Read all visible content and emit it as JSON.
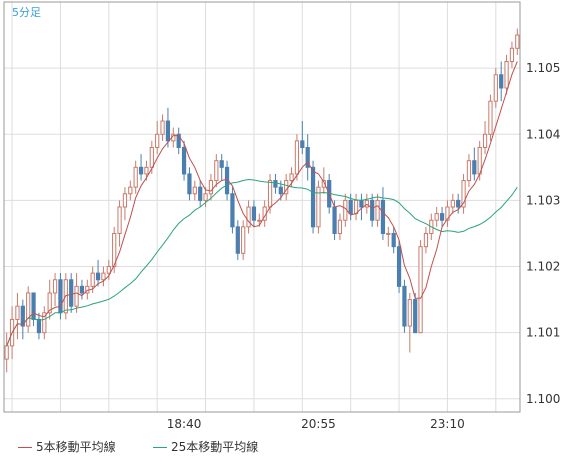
{
  "chart_data": {
    "type": "candlestick",
    "timeframe_label": "5分足",
    "x_tick_labels": [
      "18:40",
      "20:55",
      "23:10"
    ],
    "y_ticks": [
      1.1,
      1.101,
      1.102,
      1.103,
      1.104,
      1.105
    ],
    "y_tick_labels": [
      "1.100",
      "1.101",
      "1.102",
      "1.103",
      "1.104",
      "1.105"
    ],
    "ylim": [
      1.0998,
      1.106
    ],
    "grid": true,
    "legend_position": "bottom-left",
    "colors": {
      "up": "#c97a6a",
      "down": "#4a7fb0",
      "ma5": "#c0504d",
      "ma25": "#2aa47a",
      "grid": "#dddddd",
      "axis": "#999999"
    },
    "candles": [
      [
        1.1006,
        1.101,
        1.1004,
        1.1008
      ],
      [
        1.1008,
        1.1014,
        1.1006,
        1.1012
      ],
      [
        1.1012,
        1.1016,
        1.1009,
        1.1014
      ],
      [
        1.1014,
        1.1015,
        1.1009,
        1.1011
      ],
      [
        1.1011,
        1.1017,
        1.101,
        1.1016
      ],
      [
        1.1016,
        1.1016,
        1.1011,
        1.1012
      ],
      [
        1.1012,
        1.1013,
        1.1009,
        1.101
      ],
      [
        1.101,
        1.1014,
        1.1009,
        1.1013
      ],
      [
        1.1013,
        1.1018,
        1.1012,
        1.1016
      ],
      [
        1.1016,
        1.1019,
        1.1014,
        1.1018
      ],
      [
        1.1018,
        1.1019,
        1.1012,
        1.1013
      ],
      [
        1.1013,
        1.1019,
        1.1012,
        1.1018
      ],
      [
        1.1018,
        1.1019,
        1.1013,
        1.1014
      ],
      [
        1.1014,
        1.1019,
        1.1013,
        1.1017
      ],
      [
        1.1017,
        1.1018,
        1.1015,
        1.1016
      ],
      [
        1.1016,
        1.1018,
        1.1015,
        1.1017
      ],
      [
        1.1017,
        1.102,
        1.1016,
        1.1019
      ],
      [
        1.1019,
        1.1021,
        1.1017,
        1.1018
      ],
      [
        1.1018,
        1.102,
        1.1017,
        1.1019
      ],
      [
        1.1019,
        1.1021,
        1.1018,
        1.102
      ],
      [
        1.102,
        1.1026,
        1.1019,
        1.1025
      ],
      [
        1.1025,
        1.103,
        1.1023,
        1.1029
      ],
      [
        1.1029,
        1.1032,
        1.1027,
        1.1031
      ],
      [
        1.1031,
        1.1033,
        1.103,
        1.1032
      ],
      [
        1.1032,
        1.1036,
        1.1031,
        1.1035
      ],
      [
        1.1035,
        1.1037,
        1.1033,
        1.1034
      ],
      [
        1.1034,
        1.1036,
        1.1033,
        1.1035
      ],
      [
        1.1035,
        1.1039,
        1.1034,
        1.1038
      ],
      [
        1.1038,
        1.1042,
        1.1037,
        1.104
      ],
      [
        1.104,
        1.1043,
        1.1039,
        1.1042
      ],
      [
        1.1042,
        1.1044,
        1.1038,
        1.1039
      ],
      [
        1.1039,
        1.1041,
        1.1038,
        1.104
      ],
      [
        1.104,
        1.1041,
        1.1037,
        1.1038
      ],
      [
        1.1038,
        1.1039,
        1.1033,
        1.1034
      ],
      [
        1.1034,
        1.1035,
        1.103,
        1.1031
      ],
      [
        1.1031,
        1.1033,
        1.103,
        1.1032
      ],
      [
        1.1032,
        1.1033,
        1.1029,
        1.103
      ],
      [
        1.103,
        1.1032,
        1.1029,
        1.1031
      ],
      [
        1.1031,
        1.1034,
        1.103,
        1.1033
      ],
      [
        1.1033,
        1.1037,
        1.1032,
        1.1036
      ],
      [
        1.1036,
        1.1037,
        1.1033,
        1.1035
      ],
      [
        1.1035,
        1.1036,
        1.103,
        1.1031
      ],
      [
        1.1031,
        1.1032,
        1.1025,
        1.1026
      ],
      [
        1.1026,
        1.1027,
        1.1021,
        1.1022
      ],
      [
        1.1022,
        1.1027,
        1.1021,
        1.1026
      ],
      [
        1.1026,
        1.103,
        1.1025,
        1.1029
      ],
      [
        1.1029,
        1.103,
        1.1026,
        1.1027
      ],
      [
        1.1027,
        1.1028,
        1.1026,
        1.1027
      ],
      [
        1.1027,
        1.103,
        1.1026,
        1.1029
      ],
      [
        1.1029,
        1.1034,
        1.1028,
        1.1033
      ],
      [
        1.1033,
        1.1034,
        1.1031,
        1.1032
      ],
      [
        1.1032,
        1.1033,
        1.103,
        1.1031
      ],
      [
        1.1031,
        1.1034,
        1.103,
        1.1033
      ],
      [
        1.1033,
        1.1035,
        1.1032,
        1.1034
      ],
      [
        1.1034,
        1.104,
        1.1033,
        1.1039
      ],
      [
        1.1039,
        1.1042,
        1.1037,
        1.1038
      ],
      [
        1.1038,
        1.104,
        1.1033,
        1.1035
      ],
      [
        1.1035,
        1.1036,
        1.1025,
        1.1026
      ],
      [
        1.1026,
        1.1033,
        1.1025,
        1.1032
      ],
      [
        1.1032,
        1.1035,
        1.1031,
        1.1033
      ],
      [
        1.1033,
        1.1034,
        1.1028,
        1.1029
      ],
      [
        1.1029,
        1.103,
        1.1024,
        1.1025
      ],
      [
        1.1025,
        1.1028,
        1.1024,
        1.1027
      ],
      [
        1.1027,
        1.1031,
        1.1026,
        1.103
      ],
      [
        1.103,
        1.1031,
        1.1027,
        1.1028
      ],
      [
        1.1028,
        1.1031,
        1.1027,
        1.103
      ],
      [
        1.103,
        1.1031,
        1.1027,
        1.1029
      ],
      [
        1.1029,
        1.1031,
        1.1028,
        1.103
      ],
      [
        1.103,
        1.1031,
        1.1026,
        1.1027
      ],
      [
        1.1027,
        1.1031,
        1.1026,
        1.103
      ],
      [
        1.103,
        1.1032,
        1.1024,
        1.1025
      ],
      [
        1.1025,
        1.1026,
        1.1023,
        1.1025
      ],
      [
        1.1025,
        1.1026,
        1.1022,
        1.1023
      ],
      [
        1.1023,
        1.1024,
        1.1016,
        1.1017
      ],
      [
        1.1017,
        1.1018,
        1.101,
        1.1011
      ],
      [
        1.1011,
        1.1016,
        1.1007,
        1.1015
      ],
      [
        1.1015,
        1.1016,
        1.101,
        1.101
      ],
      [
        1.101,
        1.1024,
        1.101,
        1.1023
      ],
      [
        1.1023,
        1.1026,
        1.1022,
        1.1025
      ],
      [
        1.1025,
        1.1028,
        1.1024,
        1.1027
      ],
      [
        1.1027,
        1.1029,
        1.1026,
        1.1028
      ],
      [
        1.1028,
        1.1029,
        1.1026,
        1.1027
      ],
      [
        1.1027,
        1.103,
        1.1026,
        1.1029
      ],
      [
        1.1029,
        1.1031,
        1.1028,
        1.103
      ],
      [
        1.103,
        1.1031,
        1.1028,
        1.1029
      ],
      [
        1.1029,
        1.1034,
        1.1028,
        1.1033
      ],
      [
        1.1033,
        1.1037,
        1.1032,
        1.1036
      ],
      [
        1.1036,
        1.1038,
        1.1033,
        1.1034
      ],
      [
        1.1034,
        1.1039,
        1.1033,
        1.1038
      ],
      [
        1.1038,
        1.1042,
        1.1037,
        1.104
      ],
      [
        1.104,
        1.1046,
        1.1039,
        1.1045
      ],
      [
        1.1045,
        1.105,
        1.1044,
        1.1049
      ],
      [
        1.1049,
        1.1051,
        1.1045,
        1.1047
      ],
      [
        1.1047,
        1.1052,
        1.1046,
        1.1051
      ],
      [
        1.1051,
        1.1054,
        1.105,
        1.1053
      ],
      [
        1.1053,
        1.1056,
        1.1052,
        1.1055
      ]
    ],
    "x_tick_candle_index": [
      33,
      58,
      82
    ],
    "legend": [
      "5本移動平均線",
      "25本移動平均線"
    ]
  }
}
